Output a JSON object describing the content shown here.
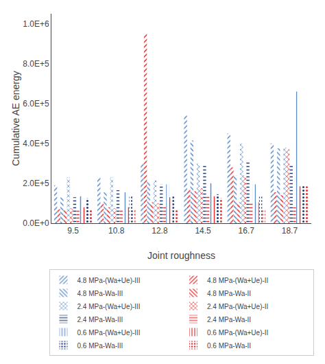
{
  "chart_data": {
    "type": "bar",
    "xlabel": "Joint roughness",
    "ylabel": "Cumulative AE energy",
    "categories": [
      "9.5",
      "10.8",
      "12.8",
      "14.5",
      "16.7",
      "18.7"
    ],
    "series": [
      {
        "name": "4.8 MPa-(Wa+Ue)-III",
        "color": "#5B8CC8",
        "values": [
          190000,
          230000,
          300000,
          540000,
          450000,
          400000
        ]
      },
      {
        "name": "4.8 MPa-(Wa+Ue)-II",
        "color": "#E83030",
        "values": [
          70000,
          100000,
          950000,
          170000,
          280000,
          155000
        ]
      },
      {
        "name": "4.8 MPa-Wa-III",
        "color": "#5B8CC8",
        "values": [
          130000,
          155000,
          210000,
          415000,
          240000,
          375000
        ]
      },
      {
        "name": "4.8 MPa-Wa-II",
        "color": "#E83030",
        "values": [
          65000,
          80000,
          105000,
          160000,
          105000,
          140000
        ]
      },
      {
        "name": "2.4 MPa-(Wa+Ue)-III",
        "color": "#5B8CC8",
        "values": [
          230000,
          230000,
          215000,
          300000,
          400000,
          380000
        ]
      },
      {
        "name": "2.4 MPa-(Wa+Ue)-II",
        "color": "#E83030",
        "values": [
          75000,
          75000,
          100000,
          175000,
          240000,
          370000
        ]
      },
      {
        "name": "2.4 MPa-Wa-III",
        "color": "#1E3A6E",
        "values": [
          130000,
          165000,
          195000,
          295000,
          310000,
          295000
        ]
      },
      {
        "name": "2.4 MPa-Wa-II",
        "color": "#E83030",
        "values": [
          65000,
          70000,
          80000,
          135000,
          100000,
          80000
        ]
      },
      {
        "name": "0.6 MPa-(Wa+Ue)-III",
        "color": "#5B8CC8",
        "values": [
          135000,
          155000,
          195000,
          200000,
          195000,
          660000
        ]
      },
      {
        "name": "0.6 MPa-(Wa+Ue)-II",
        "color": "#E83030",
        "values": [
          80000,
          80000,
          130000,
          135000,
          105000,
          185000
        ]
      },
      {
        "name": "0.6 MPa-Wa-III",
        "color": "#243C7A",
        "values": [
          125000,
          140000,
          135000,
          145000,
          140000,
          190000
        ]
      },
      {
        "name": "0.6 MPa-Wa-II",
        "color": "#E83030",
        "values": [
          65000,
          70000,
          65000,
          125000,
          65000,
          185000
        ]
      }
    ],
    "ylim": [
      0,
      1050000
    ],
    "yticks": [
      {
        "value": 0,
        "label": "0.0E+0"
      },
      {
        "value": 200000,
        "label": "2.0E+5"
      },
      {
        "value": 400000,
        "label": "4.0E+5"
      },
      {
        "value": 600000,
        "label": "6.0E+5"
      },
      {
        "value": 800000,
        "label": "8.0E+5"
      },
      {
        "value": 1000000,
        "label": "1.0E+6"
      }
    ],
    "grid": false,
    "legend": "bottom"
  }
}
